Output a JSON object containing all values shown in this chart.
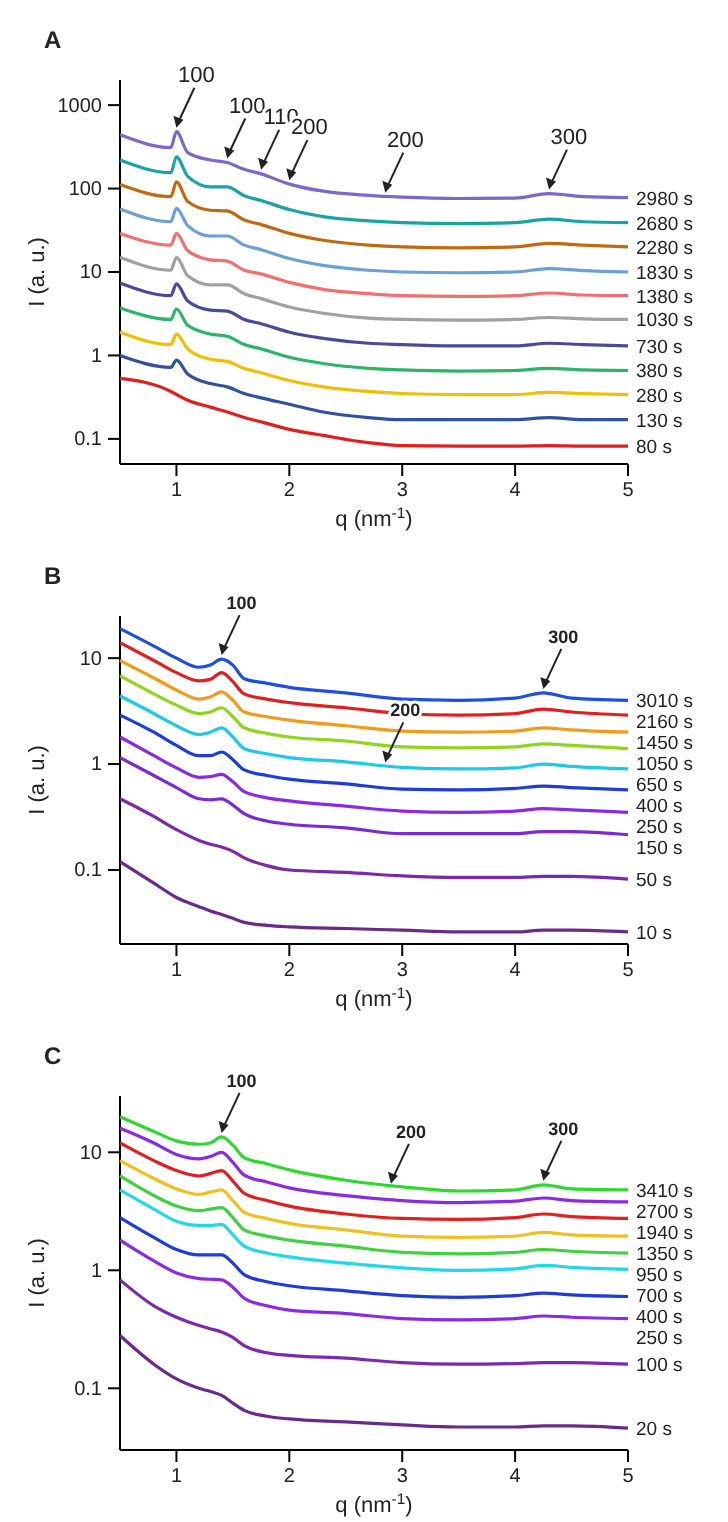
{
  "chart_data": [
    {
      "type": "line",
      "title": "A",
      "xlabel": "q (nm$^{-1}$)",
      "ylabel": "I (a. u.)",
      "log": "y",
      "xlim": [
        0.5,
        5
      ],
      "xticks": [
        1,
        2,
        3,
        4,
        5
      ],
      "ylim": [
        0.05,
        2000
      ],
      "yticks": [
        0.1,
        1,
        10,
        100,
        1000
      ],
      "x": [
        0.5,
        0.95,
        1.0,
        1.1,
        1.3,
        1.45,
        1.6,
        1.75,
        2.0,
        2.3,
        2.7,
        3.0,
        3.5,
        4.0,
        4.3,
        4.6,
        5.0
      ],
      "series": [
        {
          "name": "2980 s",
          "color": "#7b68c8",
          "values": [
            440,
            310,
            480,
            270,
            220,
            205,
            170,
            150,
            113,
            93,
            83,
            79,
            76,
            77,
            87,
            80,
            78
          ]
        },
        {
          "name": "2680 s",
          "color": "#1aa3a3",
          "values": [
            220,
            155,
            240,
            140,
            105,
            105,
            82,
            72,
            56,
            46,
            41,
            39,
            38,
            39,
            43,
            40,
            39
          ]
        },
        {
          "name": "2280 s",
          "color": "#c06a10",
          "values": [
            112,
            80,
            120,
            70,
            55,
            54,
            42,
            37,
            29,
            24,
            21,
            20,
            19.5,
            20,
            22,
            21,
            20
          ]
        },
        {
          "name": "1830 s",
          "color": "#6a9fd8",
          "values": [
            57,
            40,
            58,
            36,
            27,
            27,
            21,
            18.5,
            14.5,
            12,
            10.5,
            10,
            9.8,
            10,
            11,
            10.4,
            10
          ]
        },
        {
          "name": "1380 s",
          "color": "#f07070",
          "values": [
            29,
            21,
            29,
            18,
            14,
            13.5,
            10.5,
            9.5,
            7.5,
            6.2,
            5.5,
            5.2,
            5.1,
            5.2,
            5.6,
            5.3,
            5.2
          ]
        },
        {
          "name": "1030 s",
          "color": "#a0a0a0",
          "values": [
            15,
            10.5,
            15,
            9,
            7,
            7,
            5.5,
            4.8,
            3.8,
            3.2,
            2.8,
            2.7,
            2.65,
            2.7,
            2.85,
            2.75,
            2.7
          ]
        },
        {
          "name": "730 s",
          "color": "#4a4a9a",
          "values": [
            7.4,
            5.2,
            7.2,
            4.5,
            3.5,
            3.4,
            2.7,
            2.4,
            1.9,
            1.6,
            1.4,
            1.35,
            1.3,
            1.3,
            1.4,
            1.35,
            1.3
          ]
        },
        {
          "name": "380 s",
          "color": "#2db36a",
          "values": [
            3.7,
            2.7,
            3.6,
            2.3,
            1.8,
            1.7,
            1.35,
            1.2,
            0.95,
            0.8,
            0.7,
            0.67,
            0.65,
            0.66,
            0.7,
            0.67,
            0.66
          ]
        },
        {
          "name": "280 s",
          "color": "#f0c000",
          "values": [
            1.9,
            1.35,
            1.8,
            1.2,
            0.9,
            0.85,
            0.7,
            0.62,
            0.5,
            0.42,
            0.37,
            0.35,
            0.34,
            0.34,
            0.36,
            0.35,
            0.34
          ]
        },
        {
          "name": "130 s",
          "color": "#3050a0",
          "values": [
            1.0,
            0.72,
            0.88,
            0.6,
            0.46,
            0.42,
            0.35,
            0.31,
            0.26,
            0.21,
            0.18,
            0.17,
            0.17,
            0.17,
            0.18,
            0.17,
            0.17
          ]
        },
        {
          "name": "80 s",
          "color": "#e02020",
          "values": [
            0.53,
            0.37,
            0.34,
            0.29,
            0.24,
            0.21,
            0.18,
            0.16,
            0.13,
            0.11,
            0.09,
            0.083,
            0.082,
            0.082,
            0.083,
            0.082,
            0.082
          ]
        }
      ],
      "annotations": [
        {
          "text": "100",
          "x": 1.0,
          "y": 480
        },
        {
          "text": "100",
          "x": 1.45,
          "y": 205
        },
        {
          "text": "110",
          "x": 1.75,
          "y": 150
        },
        {
          "text": "200",
          "x": 2.0,
          "y": 113
        },
        {
          "text": "200",
          "x": 2.85,
          "y": 80
        },
        {
          "text": "300",
          "x": 4.3,
          "y": 87
        }
      ]
    },
    {
      "type": "line",
      "title": "B",
      "xlabel": "q (nm$^{-1}$)",
      "ylabel": "I (a. u.)",
      "log": "y",
      "xlim": [
        0.5,
        5
      ],
      "xticks": [
        1,
        2,
        3,
        4,
        5
      ],
      "ylim": [
        0.02,
        25
      ],
      "yticks": [
        0.1,
        1,
        10
      ],
      "x": [
        0.5,
        0.8,
        1.0,
        1.2,
        1.3,
        1.4,
        1.5,
        1.6,
        1.8,
        2.0,
        2.5,
        3.0,
        3.5,
        4.0,
        4.25,
        4.5,
        5.0
      ],
      "series": [
        {
          "name": "3010 s",
          "color": "#1f4fe0",
          "values": [
            19,
            13,
            10,
            8.2,
            8.6,
            9.8,
            8.6,
            6.4,
            5.8,
            5.3,
            4.7,
            4.1,
            4.0,
            4.2,
            4.7,
            4.2,
            4.0
          ]
        },
        {
          "name": "2160 s",
          "color": "#e02020",
          "values": [
            14,
            9.5,
            7.3,
            6.1,
            6.3,
            7.3,
            6.0,
            4.6,
            4.1,
            3.8,
            3.4,
            3.0,
            2.9,
            3.0,
            3.3,
            3.1,
            2.9
          ]
        },
        {
          "name": "1450 s",
          "color": "#f39a1a",
          "values": [
            9.5,
            6.5,
            5.0,
            4.1,
            4.3,
            4.8,
            4.0,
            3.1,
            2.8,
            2.6,
            2.3,
            2.05,
            2.0,
            2.05,
            2.2,
            2.1,
            2.0
          ]
        },
        {
          "name": "1050 s",
          "color": "#8fd61a",
          "values": [
            6.8,
            4.6,
            3.6,
            3.0,
            3.1,
            3.4,
            2.8,
            2.2,
            1.95,
            1.8,
            1.65,
            1.45,
            1.42,
            1.45,
            1.55,
            1.5,
            1.4
          ]
        },
        {
          "name": "650 s",
          "color": "#20c8e8",
          "values": [
            4.4,
            3.0,
            2.3,
            1.9,
            2.0,
            2.2,
            1.8,
            1.4,
            1.25,
            1.15,
            1.05,
            0.93,
            0.9,
            0.92,
            1.0,
            0.95,
            0.9
          ]
        },
        {
          "name": "400 s",
          "color": "#1e3cd8",
          "values": [
            2.9,
            2.0,
            1.5,
            1.2,
            1.2,
            1.3,
            1.1,
            0.88,
            0.78,
            0.72,
            0.65,
            0.58,
            0.57,
            0.59,
            0.62,
            0.6,
            0.57
          ]
        },
        {
          "name": "250 s",
          "color": "#8a2be2",
          "values": [
            1.8,
            1.2,
            0.92,
            0.75,
            0.76,
            0.8,
            0.68,
            0.55,
            0.48,
            0.45,
            0.4,
            0.36,
            0.35,
            0.36,
            0.38,
            0.37,
            0.35
          ]
        },
        {
          "name": "150 s",
          "color": "#7a2ad0",
          "values": [
            1.15,
            0.78,
            0.6,
            0.47,
            0.46,
            0.47,
            0.41,
            0.34,
            0.29,
            0.27,
            0.25,
            0.22,
            0.22,
            0.22,
            0.23,
            0.23,
            0.215
          ]
        },
        {
          "name": "50 s",
          "color": "#7a2aa8",
          "values": [
            0.47,
            0.32,
            0.24,
            0.19,
            0.175,
            0.165,
            0.15,
            0.13,
            0.11,
            0.1,
            0.095,
            0.088,
            0.085,
            0.085,
            0.087,
            0.087,
            0.082
          ]
        },
        {
          "name": "10 s",
          "color": "#6a2a8a",
          "values": [
            0.12,
            0.075,
            0.055,
            0.045,
            0.041,
            0.038,
            0.035,
            0.032,
            0.03,
            0.029,
            0.028,
            0.027,
            0.026,
            0.026,
            0.027,
            0.027,
            0.026
          ]
        }
      ],
      "annotations": [
        {
          "text": "100",
          "x": 1.4,
          "y": 9.8
        },
        {
          "text": "200",
          "x": 2.85,
          "y": 0.95
        },
        {
          "text": "300",
          "x": 4.25,
          "y": 4.7
        }
      ]
    },
    {
      "type": "line",
      "title": "C",
      "xlabel": "q (nm$^{-1}$)",
      "ylabel": "I (a. u.)",
      "log": "y",
      "xlim": [
        0.5,
        5
      ],
      "xticks": [
        1,
        2,
        3,
        4,
        5
      ],
      "ylim": [
        0.03,
        30
      ],
      "yticks": [
        0.1,
        1,
        10
      ],
      "x": [
        0.5,
        0.8,
        1.0,
        1.2,
        1.3,
        1.4,
        1.5,
        1.6,
        1.8,
        2.0,
        2.5,
        3.0,
        3.5,
        4.0,
        4.25,
        4.5,
        5.0
      ],
      "series": [
        {
          "name": "3410 s",
          "color": "#2ed82e",
          "values": [
            20,
            15,
            12.5,
            11.7,
            12,
            13.5,
            11.5,
            9,
            8,
            7.1,
            5.8,
            5.1,
            4.7,
            4.8,
            5.3,
            4.9,
            4.8
          ]
        },
        {
          "name": "2700 s",
          "color": "#8a2be2",
          "values": [
            16,
            12,
            9.6,
            8.8,
            9.2,
            10,
            8.2,
            6.4,
            5.6,
            5.0,
            4.3,
            3.9,
            3.75,
            3.85,
            4.1,
            3.9,
            3.8
          ]
        },
        {
          "name": "1940 s",
          "color": "#e02020",
          "values": [
            12,
            8.5,
            7.0,
            6.3,
            6.6,
            7.0,
            5.7,
            4.5,
            3.9,
            3.5,
            3.0,
            2.75,
            2.7,
            2.8,
            3.0,
            2.85,
            2.75
          ]
        },
        {
          "name": "1350 s",
          "color": "#f0c020",
          "values": [
            8.5,
            6.0,
            4.9,
            4.4,
            4.6,
            4.8,
            3.9,
            3.1,
            2.75,
            2.5,
            2.2,
            1.95,
            1.9,
            1.95,
            2.1,
            2.0,
            1.95
          ]
        },
        {
          "name": "950 s",
          "color": "#40d040",
          "values": [
            6.3,
            4.3,
            3.5,
            3.2,
            3.3,
            3.4,
            2.8,
            2.2,
            1.95,
            1.8,
            1.6,
            1.42,
            1.38,
            1.42,
            1.5,
            1.45,
            1.4
          ]
        },
        {
          "name": "700 s",
          "color": "#20d8e8",
          "values": [
            4.8,
            3.3,
            2.6,
            2.4,
            2.4,
            2.45,
            2.0,
            1.6,
            1.4,
            1.3,
            1.15,
            1.05,
            1.0,
            1.03,
            1.1,
            1.06,
            1.02
          ]
        },
        {
          "name": "400 s",
          "color": "#1e3cd8",
          "values": [
            2.8,
            1.9,
            1.5,
            1.35,
            1.35,
            1.35,
            1.15,
            0.92,
            0.8,
            0.74,
            0.67,
            0.61,
            0.59,
            0.61,
            0.64,
            0.62,
            0.6
          ]
        },
        {
          "name": "250 s",
          "color": "#8a2be2",
          "values": [
            1.8,
            1.2,
            0.95,
            0.85,
            0.84,
            0.83,
            0.72,
            0.58,
            0.5,
            0.46,
            0.43,
            0.39,
            0.38,
            0.39,
            0.41,
            0.4,
            0.39
          ]
        },
        {
          "name": "100 s",
          "color": "#7a2ab0",
          "values": [
            0.83,
            0.5,
            0.4,
            0.34,
            0.32,
            0.3,
            0.27,
            0.23,
            0.2,
            0.19,
            0.18,
            0.165,
            0.16,
            0.162,
            0.165,
            0.165,
            0.16
          ]
        },
        {
          "name": "20 s",
          "color": "#6a2a8a",
          "values": [
            0.28,
            0.16,
            0.12,
            0.1,
            0.094,
            0.087,
            0.075,
            0.065,
            0.058,
            0.055,
            0.052,
            0.049,
            0.047,
            0.047,
            0.048,
            0.048,
            0.046
          ]
        }
      ],
      "annotations": [
        {
          "text": "100",
          "x": 1.4,
          "y": 13.5
        },
        {
          "text": "200",
          "x": 2.9,
          "y": 5.0
        },
        {
          "text": "300",
          "x": 4.25,
          "y": 5.3
        }
      ]
    }
  ]
}
